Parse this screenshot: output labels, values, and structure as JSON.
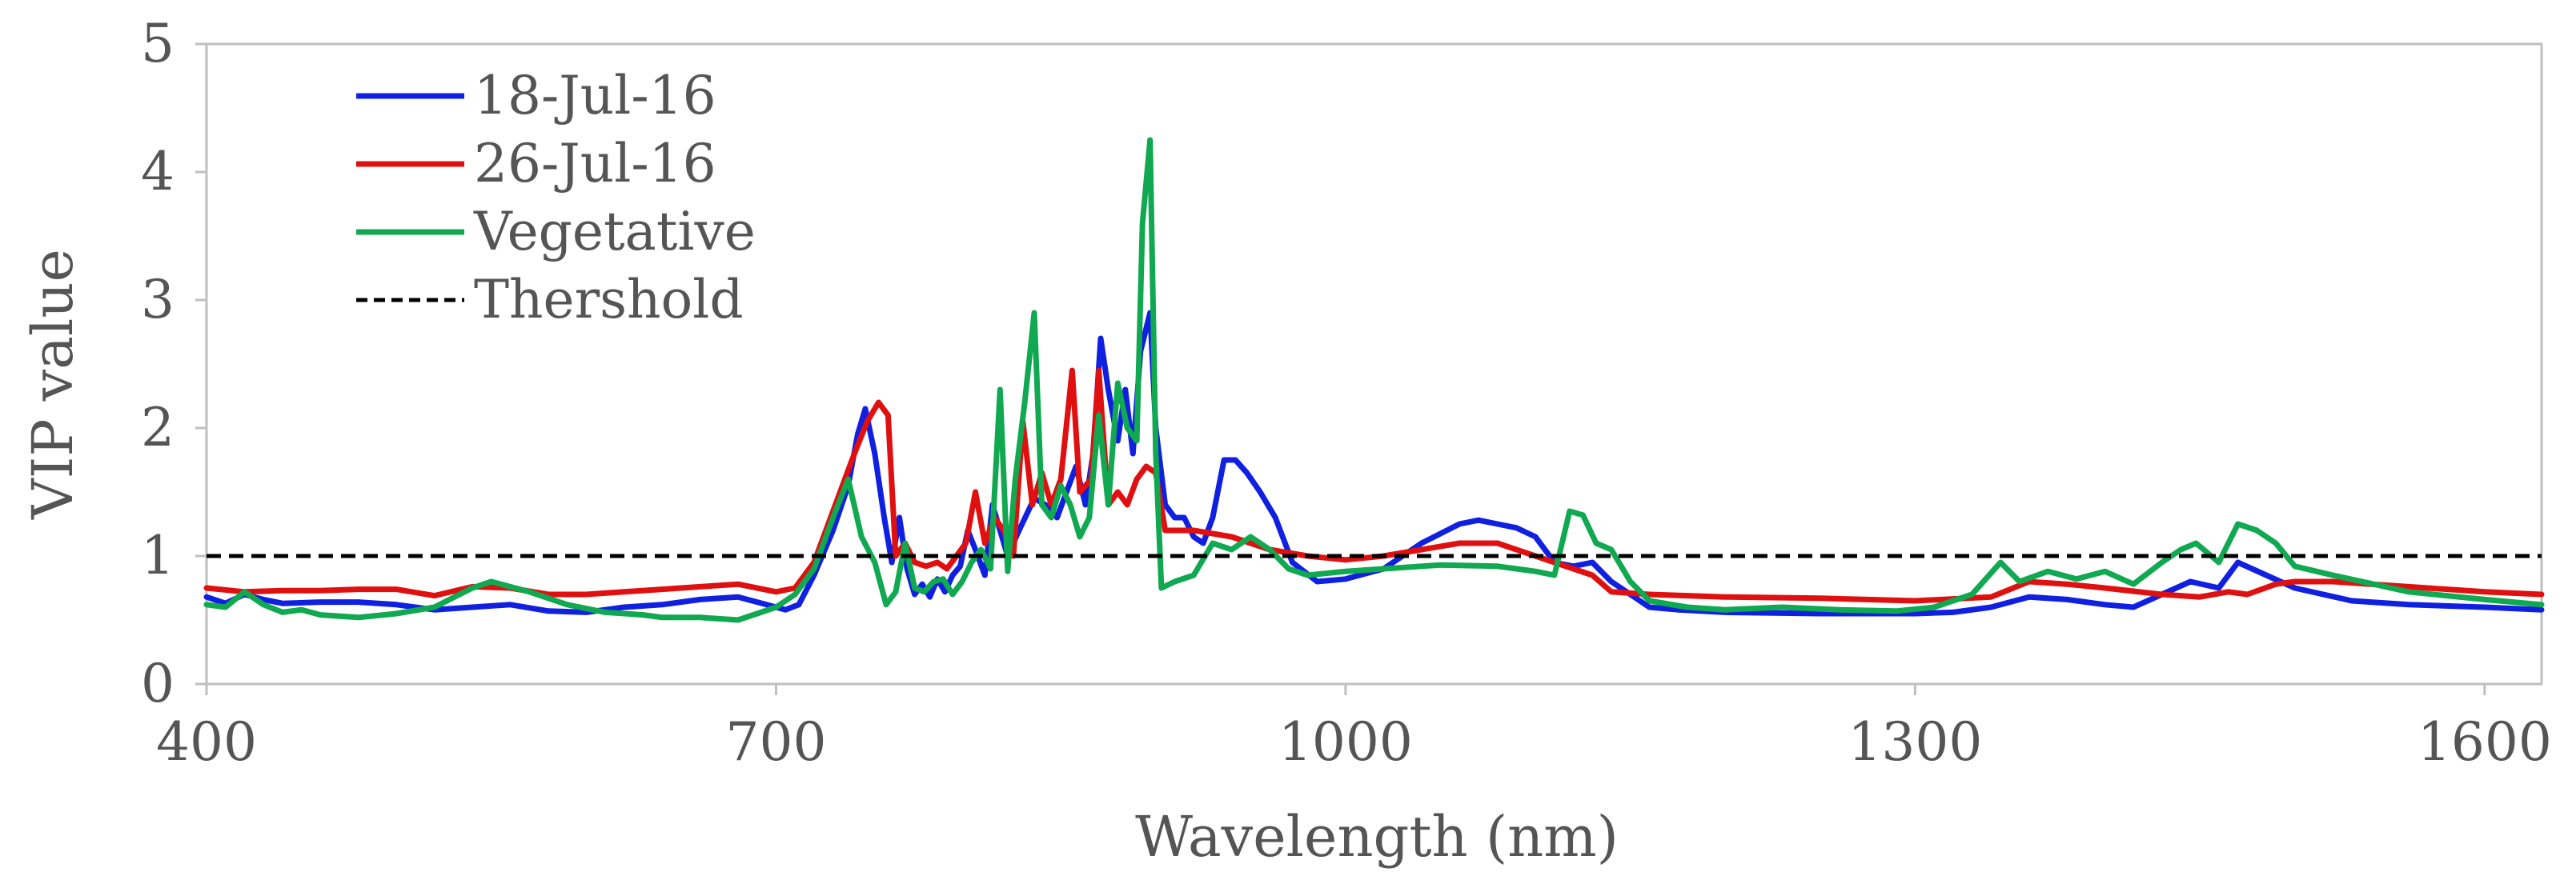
{
  "chart_data": {
    "type": "line",
    "xlabel": "Wavelength (nm)",
    "ylabel": "VIP value",
    "xlim": [
      400,
      1630
    ],
    "ylim": [
      0,
      5
    ],
    "xticks": [
      400,
      700,
      1000,
      1300,
      1600
    ],
    "yticks": [
      0,
      1,
      2,
      3,
      4,
      5
    ],
    "grid": false,
    "legend_position": "top-left",
    "series": [
      {
        "name": "18-Jul-16",
        "color": "#1020e0",
        "style": "solid",
        "points": [
          [
            400,
            0.68
          ],
          [
            410,
            0.63
          ],
          [
            420,
            0.7
          ],
          [
            430,
            0.66
          ],
          [
            440,
            0.63
          ],
          [
            460,
            0.64
          ],
          [
            480,
            0.64
          ],
          [
            500,
            0.62
          ],
          [
            520,
            0.58
          ],
          [
            540,
            0.6
          ],
          [
            560,
            0.62
          ],
          [
            580,
            0.57
          ],
          [
            600,
            0.56
          ],
          [
            620,
            0.6
          ],
          [
            640,
            0.62
          ],
          [
            660,
            0.66
          ],
          [
            680,
            0.68
          ],
          [
            695,
            0.62
          ],
          [
            705,
            0.58
          ],
          [
            712,
            0.62
          ],
          [
            720,
            0.85
          ],
          [
            730,
            1.2
          ],
          [
            738,
            1.55
          ],
          [
            743,
            1.95
          ],
          [
            747,
            2.15
          ],
          [
            752,
            1.8
          ],
          [
            757,
            1.3
          ],
          [
            761,
            0.95
          ],
          [
            765,
            1.3
          ],
          [
            769,
            0.9
          ],
          [
            773,
            0.7
          ],
          [
            777,
            0.78
          ],
          [
            781,
            0.68
          ],
          [
            785,
            0.82
          ],
          [
            789,
            0.72
          ],
          [
            793,
            0.85
          ],
          [
            797,
            0.92
          ],
          [
            801,
            1.2
          ],
          [
            805,
            1.05
          ],
          [
            810,
            0.85
          ],
          [
            814,
            1.4
          ],
          [
            818,
            1.2
          ],
          [
            822,
            1.0
          ],
          [
            828,
            1.2
          ],
          [
            836,
            1.45
          ],
          [
            842,
            1.4
          ],
          [
            848,
            1.3
          ],
          [
            853,
            1.5
          ],
          [
            858,
            1.7
          ],
          [
            863,
            1.4
          ],
          [
            867,
            1.8
          ],
          [
            871,
            2.7
          ],
          [
            875,
            2.3
          ],
          [
            880,
            1.9
          ],
          [
            884,
            2.3
          ],
          [
            888,
            1.8
          ],
          [
            892,
            2.6
          ],
          [
            897,
            2.9
          ],
          [
            900,
            2.0
          ],
          [
            905,
            1.4
          ],
          [
            910,
            1.3
          ],
          [
            915,
            1.3
          ],
          [
            920,
            1.15
          ],
          [
            925,
            1.1
          ],
          [
            930,
            1.3
          ],
          [
            936,
            1.75
          ],
          [
            942,
            1.75
          ],
          [
            948,
            1.65
          ],
          [
            955,
            1.5
          ],
          [
            963,
            1.3
          ],
          [
            972,
            0.95
          ],
          [
            985,
            0.8
          ],
          [
            1000,
            0.82
          ],
          [
            1020,
            0.9
          ],
          [
            1040,
            1.1
          ],
          [
            1060,
            1.25
          ],
          [
            1070,
            1.28
          ],
          [
            1080,
            1.25
          ],
          [
            1090,
            1.22
          ],
          [
            1100,
            1.15
          ],
          [
            1110,
            0.95
          ],
          [
            1120,
            0.92
          ],
          [
            1130,
            0.95
          ],
          [
            1140,
            0.8
          ],
          [
            1150,
            0.7
          ],
          [
            1160,
            0.6
          ],
          [
            1175,
            0.58
          ],
          [
            1200,
            0.56
          ],
          [
            1250,
            0.55
          ],
          [
            1300,
            0.55
          ],
          [
            1320,
            0.56
          ],
          [
            1340,
            0.6
          ],
          [
            1360,
            0.68
          ],
          [
            1380,
            0.66
          ],
          [
            1400,
            0.62
          ],
          [
            1415,
            0.6
          ],
          [
            1430,
            0.7
          ],
          [
            1445,
            0.8
          ],
          [
            1460,
            0.75
          ],
          [
            1470,
            0.95
          ],
          [
            1485,
            0.85
          ],
          [
            1500,
            0.75
          ],
          [
            1530,
            0.65
          ],
          [
            1560,
            0.62
          ],
          [
            1600,
            0.6
          ],
          [
            1630,
            0.58
          ]
        ]
      },
      {
        "name": "26-Jul-16",
        "color": "#e01010",
        "style": "solid",
        "points": [
          [
            400,
            0.75
          ],
          [
            420,
            0.72
          ],
          [
            440,
            0.73
          ],
          [
            460,
            0.73
          ],
          [
            480,
            0.74
          ],
          [
            500,
            0.74
          ],
          [
            520,
            0.69
          ],
          [
            540,
            0.76
          ],
          [
            560,
            0.75
          ],
          [
            580,
            0.7
          ],
          [
            600,
            0.7
          ],
          [
            620,
            0.72
          ],
          [
            640,
            0.74
          ],
          [
            660,
            0.76
          ],
          [
            680,
            0.78
          ],
          [
            700,
            0.72
          ],
          [
            710,
            0.75
          ],
          [
            720,
            0.95
          ],
          [
            730,
            1.35
          ],
          [
            740,
            1.75
          ],
          [
            748,
            2.05
          ],
          [
            754,
            2.2
          ],
          [
            759,
            2.1
          ],
          [
            763,
            1.0
          ],
          [
            768,
            1.1
          ],
          [
            773,
            0.95
          ],
          [
            779,
            0.92
          ],
          [
            785,
            0.95
          ],
          [
            790,
            0.9
          ],
          [
            795,
            1.0
          ],
          [
            800,
            1.1
          ],
          [
            805,
            1.5
          ],
          [
            810,
            1.1
          ],
          [
            815,
            1.3
          ],
          [
            820,
            1.2
          ],
          [
            825,
            1.0
          ],
          [
            830,
            2.05
          ],
          [
            835,
            1.4
          ],
          [
            840,
            1.65
          ],
          [
            845,
            1.4
          ],
          [
            850,
            1.6
          ],
          [
            856,
            2.45
          ],
          [
            860,
            1.5
          ],
          [
            866,
            1.6
          ],
          [
            870,
            2.45
          ],
          [
            875,
            1.4
          ],
          [
            880,
            1.5
          ],
          [
            885,
            1.4
          ],
          [
            890,
            1.6
          ],
          [
            895,
            1.7
          ],
          [
            900,
            1.65
          ],
          [
            905,
            1.2
          ],
          [
            920,
            1.2
          ],
          [
            940,
            1.15
          ],
          [
            960,
            1.05
          ],
          [
            980,
            1.0
          ],
          [
            1000,
            0.97
          ],
          [
            1020,
            1.0
          ],
          [
            1040,
            1.05
          ],
          [
            1060,
            1.1
          ],
          [
            1080,
            1.1
          ],
          [
            1100,
            1.0
          ],
          [
            1120,
            0.9
          ],
          [
            1130,
            0.85
          ],
          [
            1140,
            0.72
          ],
          [
            1160,
            0.7
          ],
          [
            1200,
            0.68
          ],
          [
            1250,
            0.67
          ],
          [
            1300,
            0.65
          ],
          [
            1340,
            0.68
          ],
          [
            1360,
            0.8
          ],
          [
            1380,
            0.78
          ],
          [
            1400,
            0.75
          ],
          [
            1430,
            0.7
          ],
          [
            1450,
            0.68
          ],
          [
            1465,
            0.72
          ],
          [
            1475,
            0.7
          ],
          [
            1490,
            0.78
          ],
          [
            1500,
            0.8
          ],
          [
            1520,
            0.8
          ],
          [
            1560,
            0.76
          ],
          [
            1600,
            0.72
          ],
          [
            1630,
            0.7
          ]
        ]
      },
      {
        "name": "Vegetative",
        "color": "#10a850",
        "style": "solid",
        "points": [
          [
            400,
            0.62
          ],
          [
            410,
            0.6
          ],
          [
            420,
            0.72
          ],
          [
            430,
            0.62
          ],
          [
            440,
            0.56
          ],
          [
            450,
            0.58
          ],
          [
            460,
            0.54
          ],
          [
            480,
            0.52
          ],
          [
            500,
            0.55
          ],
          [
            520,
            0.6
          ],
          [
            540,
            0.75
          ],
          [
            550,
            0.8
          ],
          [
            570,
            0.72
          ],
          [
            590,
            0.62
          ],
          [
            610,
            0.56
          ],
          [
            630,
            0.54
          ],
          [
            640,
            0.52
          ],
          [
            660,
            0.52
          ],
          [
            680,
            0.5
          ],
          [
            700,
            0.6
          ],
          [
            710,
            0.7
          ],
          [
            720,
            0.9
          ],
          [
            730,
            1.3
          ],
          [
            738,
            1.6
          ],
          [
            745,
            1.15
          ],
          [
            752,
            0.95
          ],
          [
            758,
            0.62
          ],
          [
            763,
            0.72
          ],
          [
            768,
            1.1
          ],
          [
            773,
            0.75
          ],
          [
            778,
            0.72
          ],
          [
            783,
            0.8
          ],
          [
            788,
            0.82
          ],
          [
            793,
            0.7
          ],
          [
            798,
            0.8
          ],
          [
            803,
            0.95
          ],
          [
            808,
            1.05
          ],
          [
            813,
            0.9
          ],
          [
            818,
            2.3
          ],
          [
            822,
            0.88
          ],
          [
            826,
            1.6
          ],
          [
            831,
            2.2
          ],
          [
            836,
            2.9
          ],
          [
            840,
            1.4
          ],
          [
            845,
            1.3
          ],
          [
            850,
            1.55
          ],
          [
            855,
            1.4
          ],
          [
            860,
            1.15
          ],
          [
            865,
            1.3
          ],
          [
            870,
            2.1
          ],
          [
            875,
            1.4
          ],
          [
            880,
            2.35
          ],
          [
            885,
            2.0
          ],
          [
            890,
            1.9
          ],
          [
            893,
            3.6
          ],
          [
            897,
            4.25
          ],
          [
            900,
            1.8
          ],
          [
            903,
            0.75
          ],
          [
            910,
            0.8
          ],
          [
            920,
            0.85
          ],
          [
            930,
            1.1
          ],
          [
            940,
            1.05
          ],
          [
            950,
            1.15
          ],
          [
            960,
            1.05
          ],
          [
            970,
            0.9
          ],
          [
            980,
            0.85
          ],
          [
            1000,
            0.88
          ],
          [
            1020,
            0.9
          ],
          [
            1050,
            0.93
          ],
          [
            1080,
            0.92
          ],
          [
            1100,
            0.88
          ],
          [
            1110,
            0.85
          ],
          [
            1118,
            1.35
          ],
          [
            1125,
            1.32
          ],
          [
            1132,
            1.1
          ],
          [
            1140,
            1.05
          ],
          [
            1150,
            0.8
          ],
          [
            1160,
            0.65
          ],
          [
            1180,
            0.6
          ],
          [
            1200,
            0.58
          ],
          [
            1230,
            0.6
          ],
          [
            1260,
            0.58
          ],
          [
            1290,
            0.57
          ],
          [
            1310,
            0.6
          ],
          [
            1330,
            0.7
          ],
          [
            1345,
            0.95
          ],
          [
            1355,
            0.8
          ],
          [
            1370,
            0.88
          ],
          [
            1385,
            0.82
          ],
          [
            1400,
            0.88
          ],
          [
            1415,
            0.78
          ],
          [
            1430,
            0.95
          ],
          [
            1440,
            1.05
          ],
          [
            1448,
            1.1
          ],
          [
            1460,
            0.95
          ],
          [
            1470,
            1.25
          ],
          [
            1480,
            1.2
          ],
          [
            1490,
            1.1
          ],
          [
            1500,
            0.92
          ],
          [
            1520,
            0.85
          ],
          [
            1560,
            0.72
          ],
          [
            1600,
            0.66
          ],
          [
            1630,
            0.62
          ]
        ]
      },
      {
        "name": "Thershold",
        "color": "#000000",
        "style": "dashed",
        "points": [
          [
            400,
            1.0
          ],
          [
            1630,
            1.0
          ]
        ]
      }
    ]
  }
}
